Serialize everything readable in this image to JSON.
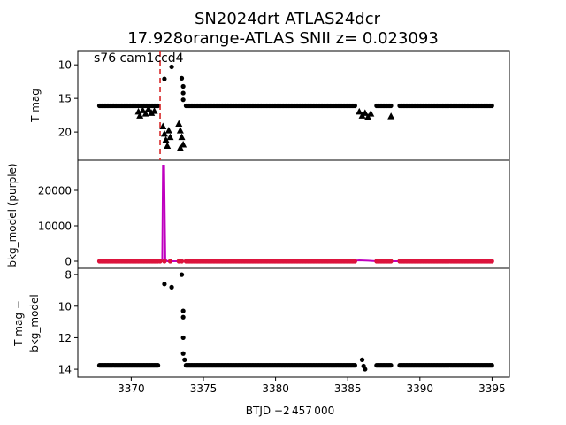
{
  "title": {
    "line1": "SN2024drt  ATLAS24dcr",
    "line2": "17.928orange-ATLAS SNII z= 0.023093"
  },
  "annotation": "s76 cam1ccd4",
  "colors": {
    "black": "#000000",
    "purple": "#bf00bf",
    "crimson": "#dc143c",
    "red_line": "#d62728"
  },
  "chart_data": [
    {
      "type": "scatter",
      "panel": "top",
      "ylabel": "T mag",
      "y_inverted": true,
      "xlim": [
        3366.3,
        3396.2
      ],
      "ylim": [
        24.2,
        8.0
      ],
      "yticks": [
        10,
        15,
        20
      ],
      "vline_x": 3372.0,
      "vline_style": "red dashed",
      "series": [
        {
          "marker": "dot",
          "color": "#000000",
          "segments": [
            {
              "x": [
                3367.8,
                3371.9
              ],
              "y": 16.1
            },
            {
              "x": [
                3373.8,
                3385.5
              ],
              "y": 16.1
            },
            {
              "x": [
                3387.0,
                3388.0
              ],
              "y": 16.1
            },
            {
              "x": [
                3388.6,
                3395.0
              ],
              "y": 16.1
            }
          ],
          "points": [
            {
              "x": 3372.3,
              "y": 12.1
            },
            {
              "x": 3372.8,
              "y": 10.3
            },
            {
              "x": 3373.5,
              "y": 12.0
            },
            {
              "x": 3373.6,
              "y": 13.2
            },
            {
              "x": 3373.6,
              "y": 14.2
            },
            {
              "x": 3373.6,
              "y": 15.2
            }
          ]
        },
        {
          "marker": "triangle",
          "color": "#000000",
          "points": [
            {
              "x": 3370.5,
              "y": 17.0
            },
            {
              "x": 3370.6,
              "y": 17.6
            },
            {
              "x": 3370.8,
              "y": 16.8
            },
            {
              "x": 3371.0,
              "y": 17.3
            },
            {
              "x": 3371.2,
              "y": 16.6
            },
            {
              "x": 3371.4,
              "y": 17.2
            },
            {
              "x": 3371.6,
              "y": 16.9
            },
            {
              "x": 3372.2,
              "y": 19.2
            },
            {
              "x": 3372.3,
              "y": 20.3
            },
            {
              "x": 3372.4,
              "y": 21.2
            },
            {
              "x": 3372.5,
              "y": 22.1
            },
            {
              "x": 3372.6,
              "y": 19.8
            },
            {
              "x": 3372.7,
              "y": 20.8
            },
            {
              "x": 3373.3,
              "y": 18.8
            },
            {
              "x": 3373.4,
              "y": 19.8
            },
            {
              "x": 3373.5,
              "y": 20.8
            },
            {
              "x": 3373.6,
              "y": 21.9
            },
            {
              "x": 3373.4,
              "y": 22.4
            },
            {
              "x": 3385.8,
              "y": 17.0
            },
            {
              "x": 3386.0,
              "y": 17.6
            },
            {
              "x": 3386.2,
              "y": 17.2
            },
            {
              "x": 3386.4,
              "y": 17.8
            },
            {
              "x": 3386.6,
              "y": 17.3
            },
            {
              "x": 3388.0,
              "y": 17.7
            }
          ]
        }
      ]
    },
    {
      "type": "line",
      "panel": "middle",
      "ylabel_lines": [
        "bkg_model (purple)"
      ],
      "xlim": [
        3366.3,
        3396.2
      ],
      "ylim": [
        -2000,
        28500
      ],
      "yticks": [
        0,
        10000,
        20000
      ],
      "vline_x": 3372.0,
      "series": [
        {
          "name_hint": "bkg_model",
          "color": "#bf00bf",
          "x": [
            3367.8,
            3372.0,
            3372.15,
            3372.2,
            3372.28,
            3372.36,
            3372.5,
            3380.0,
            3385.0,
            3385.8,
            3386.4,
            3387.0,
            3388.5,
            3395.0
          ],
          "y": [
            0,
            0,
            500,
            27000,
            27000,
            500,
            0,
            0,
            0,
            250,
            150,
            0,
            0,
            0
          ]
        },
        {
          "marker": "dot",
          "color": "#dc143c",
          "segments": [
            {
              "x": [
                3367.8,
                3371.9
              ],
              "y": 0
            },
            {
              "x": [
                3373.8,
                3385.5
              ],
              "y": 0
            },
            {
              "x": [
                3387.0,
                3388.0
              ],
              "y": 0
            },
            {
              "x": [
                3388.6,
                3395.0
              ],
              "y": 0
            }
          ],
          "points": [
            {
              "x": 3372.0,
              "y": 0
            },
            {
              "x": 3372.3,
              "y": 0
            },
            {
              "x": 3372.7,
              "y": 0
            },
            {
              "x": 3373.3,
              "y": 0
            },
            {
              "x": 3373.5,
              "y": 0
            }
          ]
        }
      ]
    },
    {
      "type": "scatter",
      "panel": "bottom",
      "ylabel_lines": [
        "T mag −",
        "bkg_model"
      ],
      "xlabel": "BTJD −2 457 000",
      "y_inverted": true,
      "xlim": [
        3366.3,
        3396.2
      ],
      "ylim": [
        14.5,
        7.6
      ],
      "yticks": [
        8,
        10,
        12,
        14
      ],
      "xticks": [
        3370,
        3375,
        3380,
        3385,
        3390,
        3395
      ],
      "series": [
        {
          "marker": "dot",
          "color": "#000000",
          "segments": [
            {
              "x": [
                3367.8,
                3371.9
              ],
              "y": 13.75
            },
            {
              "x": [
                3373.8,
                3385.5
              ],
              "y": 13.75
            },
            {
              "x": [
                3387.0,
                3388.0
              ],
              "y": 13.75
            },
            {
              "x": [
                3388.6,
                3395.0
              ],
              "y": 13.75
            }
          ],
          "points": [
            {
              "x": 3372.3,
              "y": 8.6
            },
            {
              "x": 3372.8,
              "y": 8.8
            },
            {
              "x": 3373.5,
              "y": 8.0
            },
            {
              "x": 3373.6,
              "y": 10.3
            },
            {
              "x": 3373.6,
              "y": 10.7
            },
            {
              "x": 3373.6,
              "y": 12.0
            },
            {
              "x": 3373.6,
              "y": 13.0
            },
            {
              "x": 3373.7,
              "y": 13.4
            },
            {
              "x": 3386.0,
              "y": 13.4
            },
            {
              "x": 3386.1,
              "y": 13.8
            },
            {
              "x": 3386.2,
              "y": 14.0
            }
          ]
        }
      ]
    }
  ]
}
